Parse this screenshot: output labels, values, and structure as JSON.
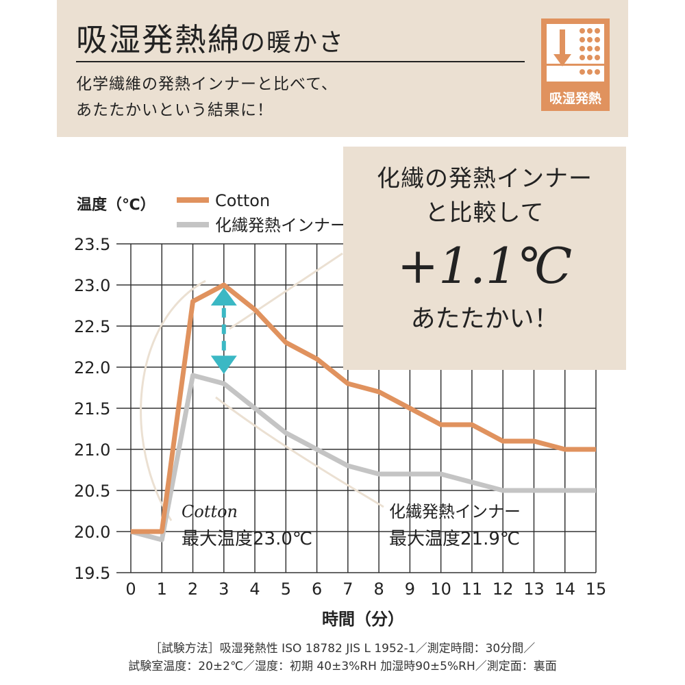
{
  "header": {
    "title_main": "吸湿発熱綿",
    "title_tail": "の暖かさ",
    "subtitle_lines": [
      "化学繊維の発熱インナーと比べて、",
      "あたたかいという結果に！"
    ],
    "badge_label": "吸湿発熱",
    "badge_icon": "moisture-heat-icon"
  },
  "callout": {
    "line1": "化繊の発熱インナー",
    "line2": "と比較して",
    "value": "+1.1℃",
    "line3": "あたたかい！"
  },
  "annotations": {
    "cotton_name": "Cotton",
    "cotton_max": "最大温度23.0℃",
    "synthetic_name": "化繊発熱インナー",
    "synthetic_max": "最大温度21.9℃"
  },
  "footnote": [
    "［試験方法］吸湿発熱性 ISO 18782 JIS L 1952-1／測定時間：30分間／",
    "試験室温度：20±2℃／湿度：初期 40±3%RH 加湿時90±5%RH／測定面：裏面"
  ],
  "chart_data": {
    "type": "line",
    "ylabel": "温度（℃）",
    "xlabel": "時間（分）",
    "x": [
      0,
      1,
      2,
      3,
      4,
      5,
      6,
      7,
      8,
      9,
      10,
      11,
      12,
      13,
      14,
      15
    ],
    "xticks": [
      "0",
      "1",
      "2",
      "3",
      "4",
      "5",
      "6",
      "7",
      "8",
      "9",
      "10",
      "11",
      "12",
      "13",
      "14",
      "15"
    ],
    "yticks": [
      "19.5",
      "20.0",
      "20.5",
      "21.0",
      "21.5",
      "22.0",
      "22.5",
      "23.0",
      "23.5"
    ],
    "ylim": [
      19.5,
      23.5
    ],
    "xlim": [
      0,
      15
    ],
    "grid": true,
    "legend": "top-left",
    "series": [
      {
        "name": "Cotton",
        "color": "#e0925e",
        "values": [
          20.0,
          20.0,
          22.8,
          23.0,
          22.7,
          22.3,
          22.1,
          21.8,
          21.7,
          21.5,
          21.3,
          21.3,
          21.1,
          21.1,
          21.0,
          21.0
        ]
      },
      {
        "name": "化繊発熱インナー",
        "color": "#c4c4c4",
        "values": [
          20.0,
          19.9,
          21.9,
          21.8,
          21.5,
          21.2,
          21.0,
          20.8,
          20.7,
          20.7,
          20.7,
          20.6,
          20.5,
          20.5,
          20.5,
          20.5
        ]
      }
    ],
    "difference_arrow_color": "#3bb8c4"
  }
}
